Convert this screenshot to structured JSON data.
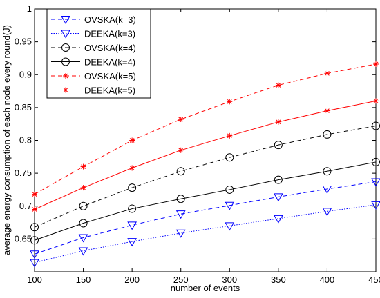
{
  "chart_data": {
    "type": "line",
    "title": "",
    "xlabel": "number of events",
    "ylabel": "average energy consumption of each node every round(J)",
    "xlim": [
      100,
      450
    ],
    "ylim": [
      0.6,
      1.0
    ],
    "x": [
      100,
      150,
      200,
      250,
      300,
      350,
      400,
      450
    ],
    "xticks": [
      "100",
      "150",
      "200",
      "250",
      "300",
      "350",
      "400",
      "450"
    ],
    "yticks": [
      "0.65",
      "0.7",
      "0.75",
      "0.8",
      "0.85",
      "0.9",
      "0.95",
      "1"
    ],
    "grid": false,
    "legend_position": "top-left",
    "series": [
      {
        "name": "OVSKA(k=3)",
        "color": "#0000ff",
        "dash": "dashed",
        "marker": "triangle-down",
        "values": [
          0.627,
          0.652,
          0.671,
          0.688,
          0.701,
          0.714,
          0.726,
          0.737
        ]
      },
      {
        "name": "DEEKA(k=3)",
        "color": "#0000ff",
        "dash": "dotted",
        "marker": "triangle-down",
        "values": [
          0.614,
          0.632,
          0.646,
          0.659,
          0.67,
          0.681,
          0.692,
          0.702
        ]
      },
      {
        "name": "OVSKA(k=4)",
        "color": "#000000",
        "dash": "dashed",
        "marker": "circle",
        "values": [
          0.668,
          0.7,
          0.728,
          0.753,
          0.774,
          0.793,
          0.809,
          0.822
        ]
      },
      {
        "name": "DEEKA(k=4)",
        "color": "#000000",
        "dash": "solid",
        "marker": "circle",
        "values": [
          0.648,
          0.674,
          0.696,
          0.711,
          0.725,
          0.74,
          0.753,
          0.767
        ]
      },
      {
        "name": "OVSKA(k=5)",
        "color": "#ff0000",
        "dash": "dashed",
        "marker": "star",
        "values": [
          0.718,
          0.76,
          0.8,
          0.832,
          0.859,
          0.884,
          0.902,
          0.916
        ]
      },
      {
        "name": "DEEKA(k=5)",
        "color": "#ff0000",
        "dash": "solid",
        "marker": "star",
        "values": [
          0.695,
          0.728,
          0.758,
          0.785,
          0.807,
          0.828,
          0.845,
          0.86
        ]
      }
    ]
  }
}
